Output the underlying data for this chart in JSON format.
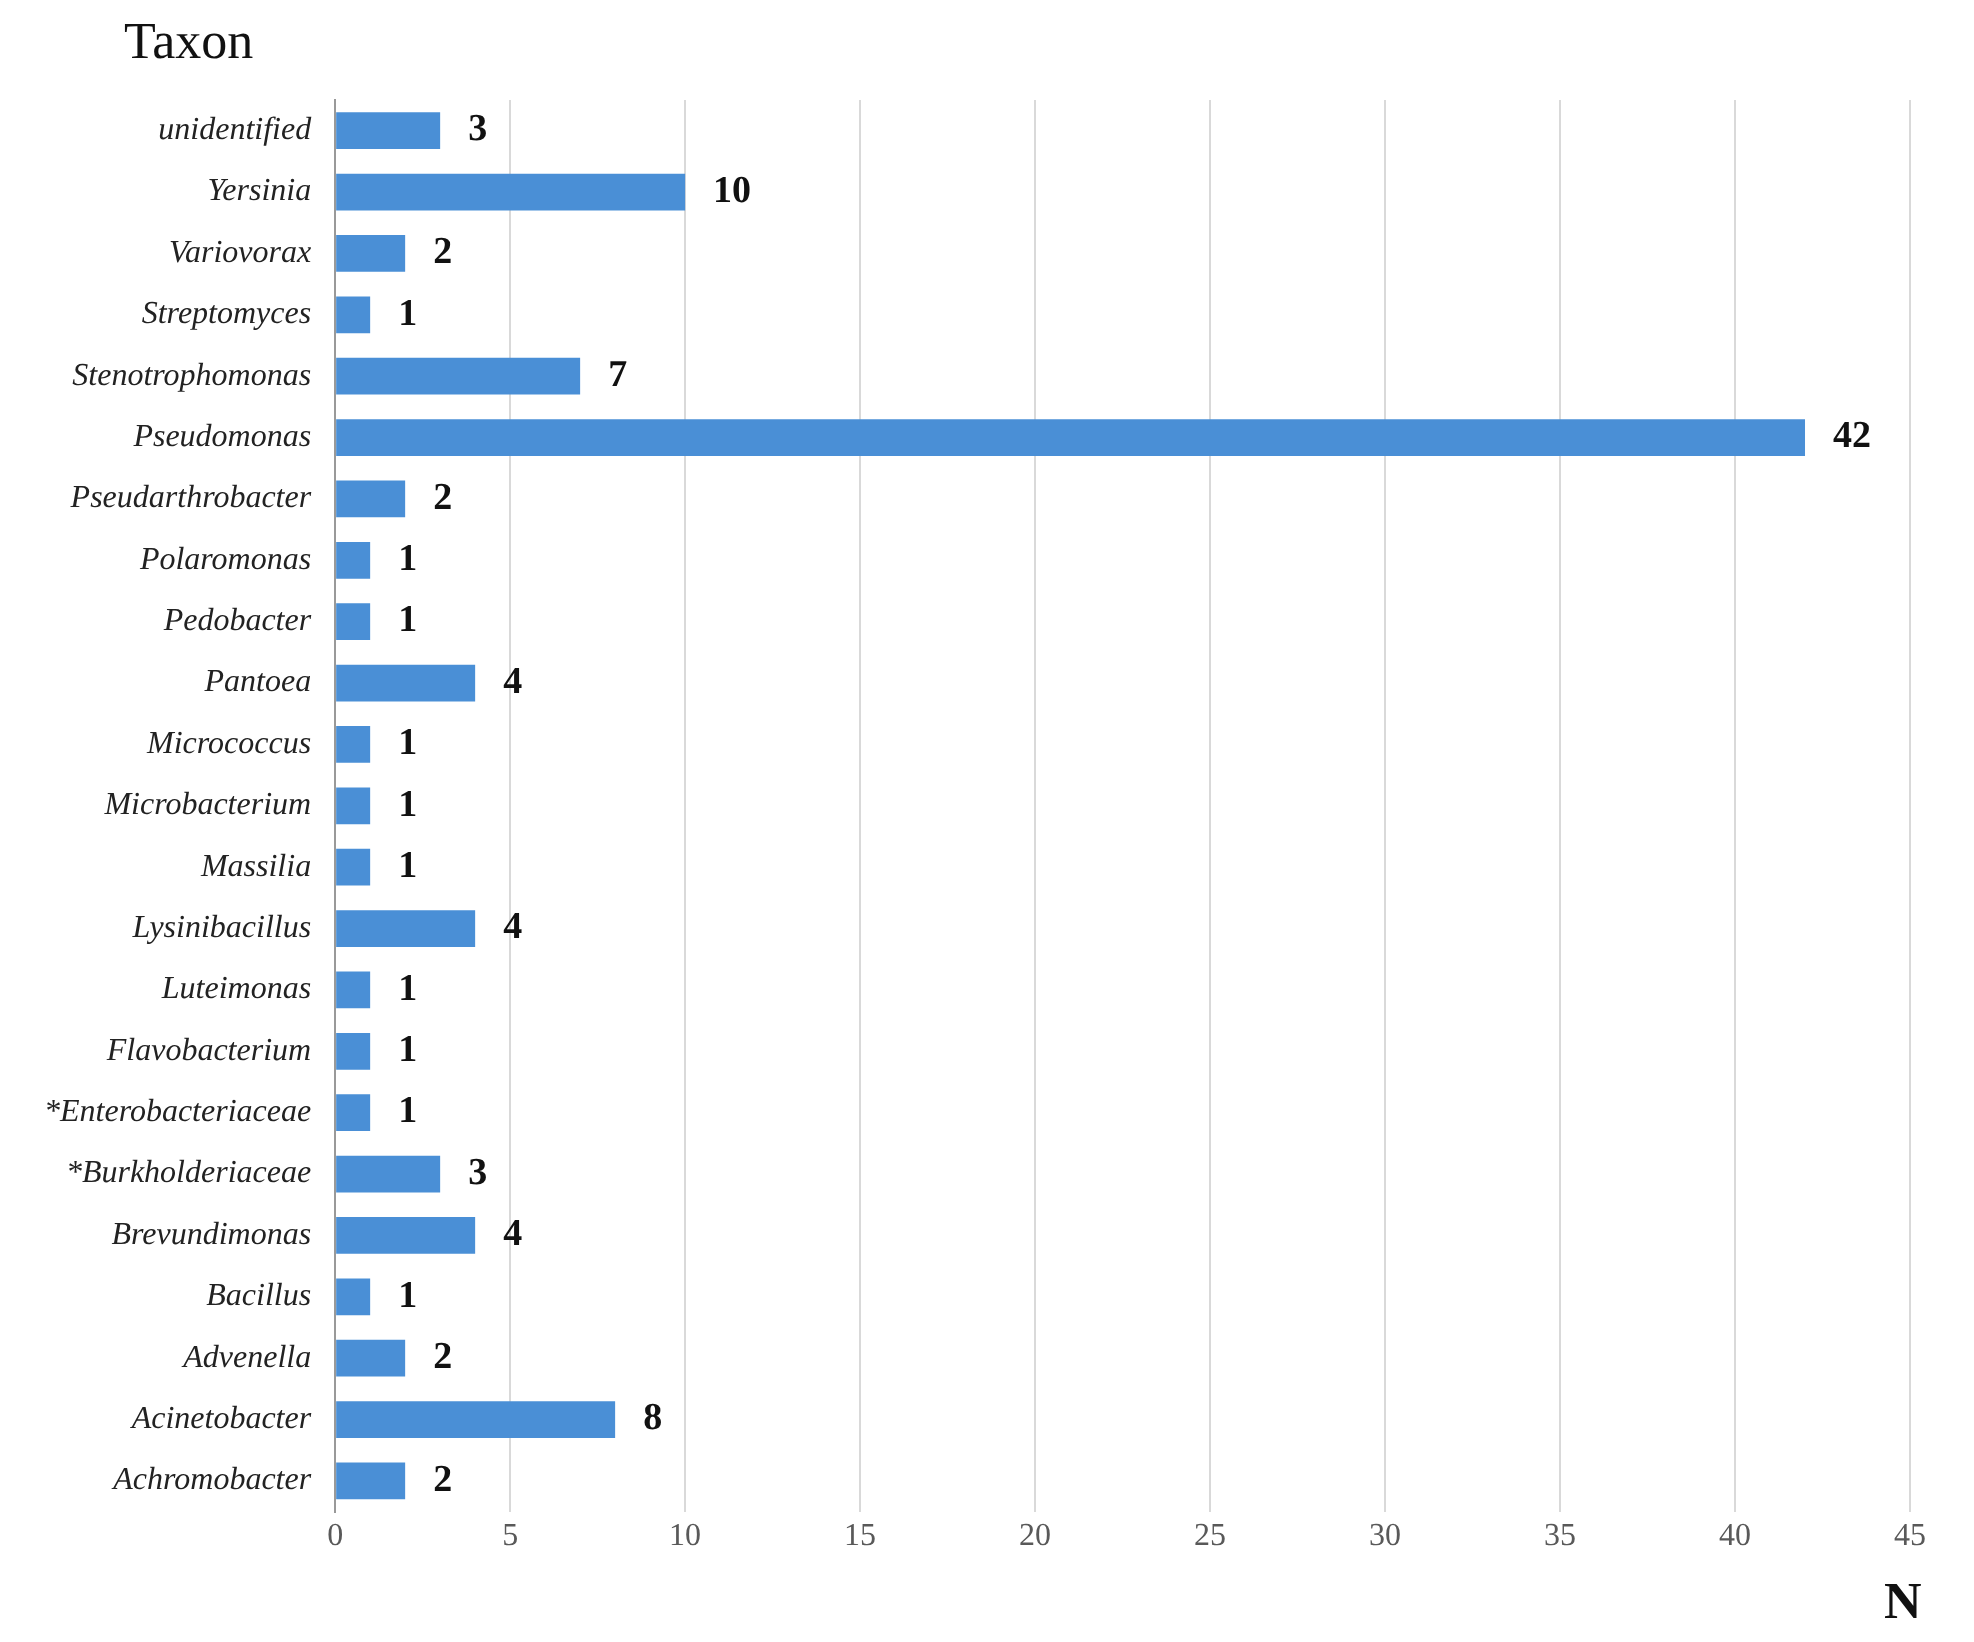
{
  "chart_data": {
    "type": "bar",
    "orientation": "horizontal",
    "ylabel": "Taxon",
    "xlabel": "N",
    "categories": [
      "unidentified",
      "Yersinia",
      "Variovorax",
      "Streptomyces",
      "Stenotrophomonas",
      "Pseudomonas",
      "Pseudarthrobacter",
      "Polaromonas",
      "Pedobacter",
      "Pantoea",
      "Micrococcus",
      "Microbacterium",
      "Massilia",
      "Lysinibacillus",
      "Luteimonas",
      "Flavobacterium",
      "*Enterobacteriaceae",
      "*Burkholderiaceae",
      "Brevundimonas",
      "Bacillus",
      "Advenella",
      "Acinetobacter",
      "Achromobacter"
    ],
    "values": [
      3,
      10,
      2,
      1,
      7,
      42,
      2,
      1,
      1,
      4,
      1,
      1,
      1,
      4,
      1,
      1,
      1,
      3,
      4,
      1,
      2,
      8,
      2
    ],
    "color": "#4a8fd6",
    "xlim": [
      0,
      45
    ],
    "xticks": [
      0,
      5,
      10,
      15,
      20,
      25,
      30,
      35,
      40,
      45
    ],
    "grid": "x",
    "data_labels": true,
    "legend": false
  }
}
